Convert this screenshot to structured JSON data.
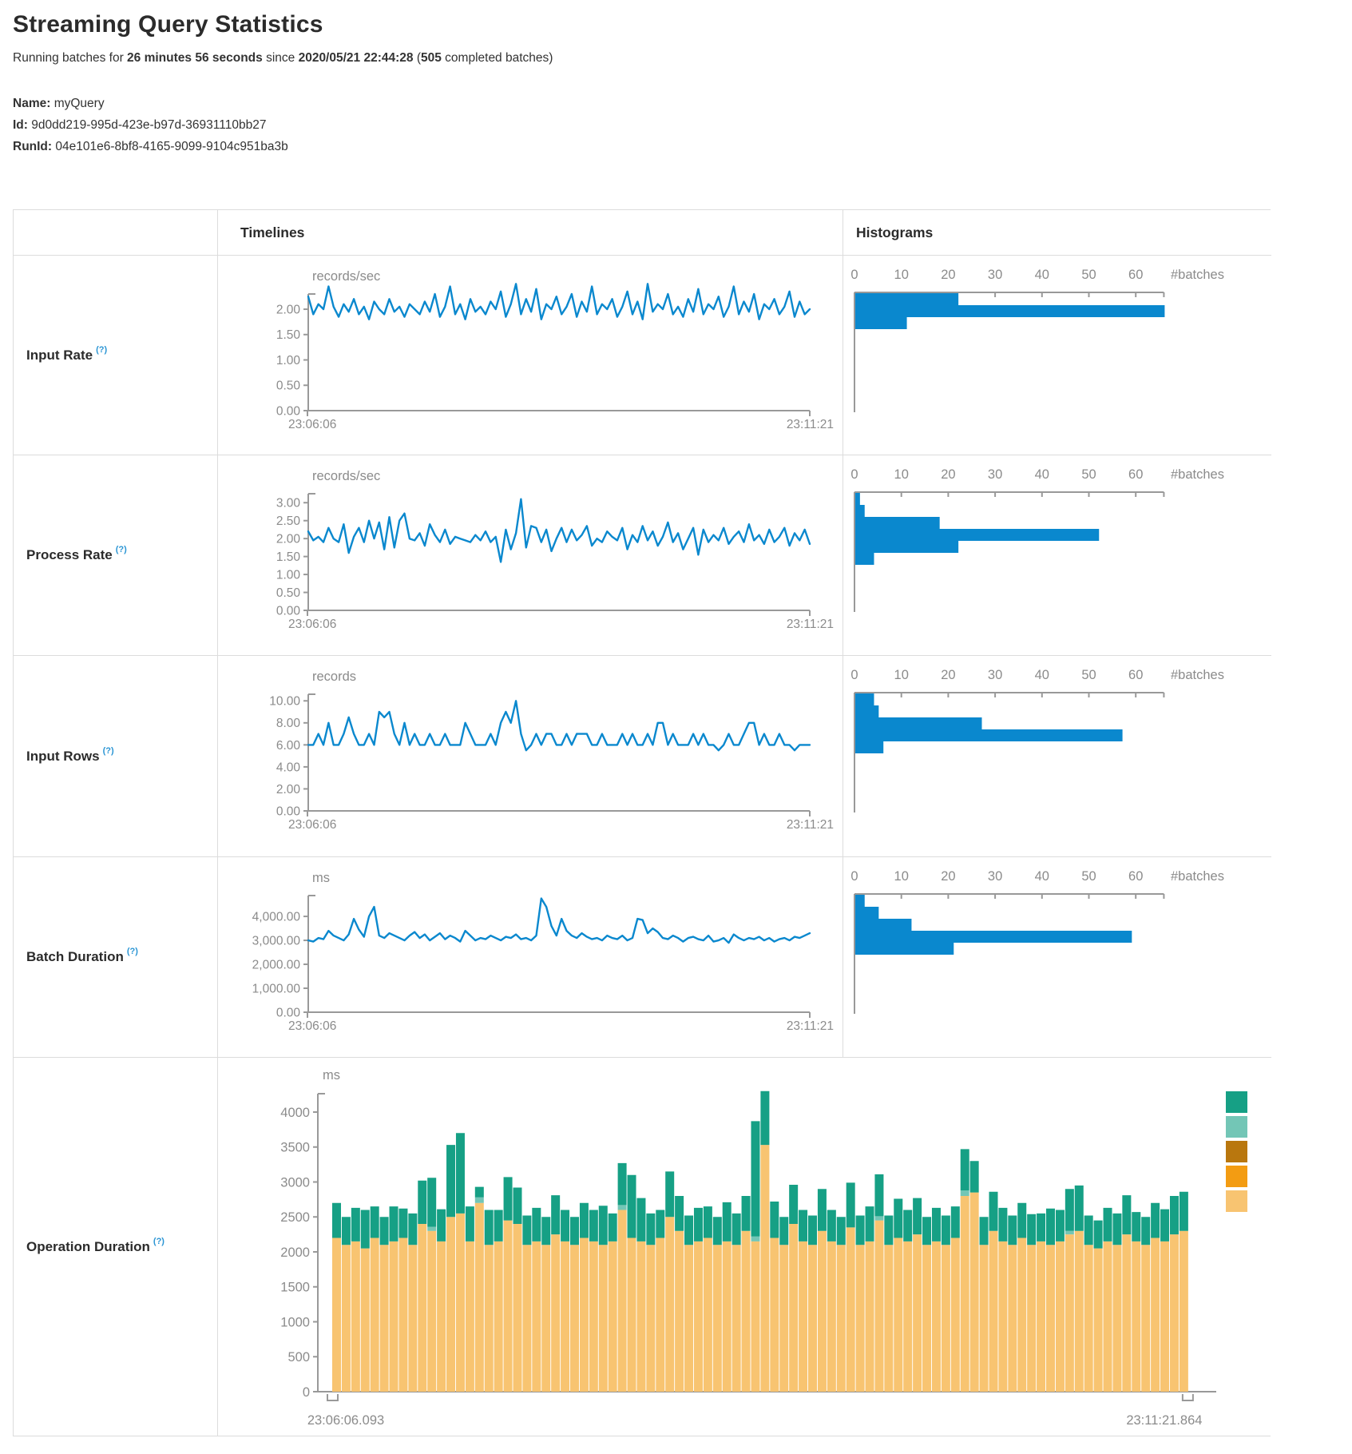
{
  "page": {
    "title": "Streaming Query Statistics"
  },
  "subtitle": {
    "prefix": "Running batches for ",
    "duration": "26 minutes 56 seconds",
    "middle": " since ",
    "start_time": "2020/05/21 22:44:28",
    "paren": " (",
    "completed_count": "505",
    "suffix": " completed batches)"
  },
  "meta": {
    "name_label": "Name:",
    "name": " myQuery",
    "id_label": "Id:",
    "id": " 9d0dd219-995d-423e-b97d-36931110bb27",
    "runid_label": "RunId:",
    "runid": " 04e101e6-8bf8-4165-9099-9104c951ba3b"
  },
  "table": {
    "timelines_header": "Timelines",
    "histograms_header": "Histograms",
    "help_mark": "(?)"
  },
  "colors": {
    "series_blue": "#0a88ce",
    "axis_gray": "#999999",
    "tick_text": "#8b8b8b",
    "help_blue": "#2a95d4"
  },
  "chart_data": [
    {
      "name": "Input Rate",
      "type": "line",
      "timeline": {
        "unit": "records/sec",
        "x_start_label": "23:06:06",
        "x_end_label": "23:11:21",
        "ylim": [
          0,
          2.3
        ],
        "yticks": [
          0,
          0.5,
          1,
          1.5,
          2
        ],
        "ytick_labels": [
          "0.00",
          "0.50",
          "1.00",
          "1.50",
          "2.00"
        ],
        "values": [
          2.25,
          1.9,
          2.1,
          2.0,
          2.45,
          2.05,
          1.85,
          2.1,
          1.95,
          2.2,
          1.9,
          2.05,
          1.8,
          2.15,
          2.0,
          1.9,
          2.2,
          1.95,
          2.05,
          1.85,
          2.1,
          2.0,
          1.9,
          2.15,
          1.95,
          2.3,
          1.85,
          2.05,
          2.45,
          1.9,
          2.1,
          1.8,
          2.2,
          1.95,
          2.05,
          1.9,
          2.15,
          2.0,
          2.35,
          1.85,
          2.1,
          2.5,
          1.9,
          2.2,
          1.95,
          2.4,
          1.8,
          2.1,
          2.0,
          2.25,
          1.9,
          2.05,
          2.3,
          1.85,
          2.15,
          1.95,
          2.45,
          1.9,
          2.1,
          2.0,
          2.2,
          1.85,
          2.05,
          2.35,
          1.9,
          2.15,
          1.8,
          2.5,
          1.95,
          2.1,
          2.0,
          2.3,
          1.9,
          2.05,
          1.85,
          2.2,
          1.95,
          2.4,
          1.9,
          2.1,
          2.0,
          2.25,
          1.85,
          2.05,
          2.45,
          1.9,
          2.15,
          1.95,
          2.3,
          1.8,
          2.1,
          2.0,
          2.2,
          1.9,
          2.05,
          2.35,
          1.85,
          2.15,
          1.9,
          2.0
        ]
      },
      "histogram": {
        "xlabel": "#batches",
        "xticks": [
          0,
          10,
          20,
          30,
          40,
          50,
          60
        ],
        "xmax": 66,
        "bars": [
          22,
          66,
          11
        ]
      }
    },
    {
      "name": "Process Rate",
      "type": "line",
      "timeline": {
        "unit": "records/sec",
        "x_start_label": "23:06:06",
        "x_end_label": "23:11:21",
        "ylim": [
          0,
          3.25
        ],
        "yticks": [
          0,
          0.5,
          1,
          1.5,
          2,
          2.5,
          3
        ],
        "ytick_labels": [
          "0.00",
          "0.50",
          "1.00",
          "1.50",
          "2.00",
          "2.50",
          "3.00"
        ],
        "values": [
          2.2,
          1.95,
          2.05,
          1.9,
          2.3,
          2.0,
          1.9,
          2.4,
          1.6,
          2.05,
          2.3,
          1.9,
          2.5,
          2.0,
          2.45,
          1.7,
          2.6,
          1.75,
          2.5,
          2.7,
          2.0,
          1.95,
          2.15,
          1.8,
          2.4,
          2.1,
          1.9,
          2.25,
          1.85,
          2.05,
          2.0,
          1.95,
          1.9,
          2.1,
          1.95,
          2.2,
          1.9,
          2.05,
          1.35,
          2.25,
          1.7,
          2.15,
          3.1,
          1.75,
          2.35,
          2.3,
          1.9,
          2.25,
          1.65,
          2.0,
          2.3,
          1.9,
          2.25,
          1.95,
          2.1,
          2.35,
          1.8,
          2.0,
          1.9,
          2.2,
          2.05,
          1.95,
          2.3,
          1.7,
          2.1,
          1.9,
          2.35,
          1.95,
          2.2,
          1.8,
          2.05,
          2.45,
          1.9,
          2.15,
          1.7,
          2.0,
          2.3,
          1.55,
          2.25,
          1.9,
          2.1,
          1.95,
          2.3,
          1.85,
          2.05,
          2.2,
          1.9,
          2.4,
          1.95,
          2.1,
          1.85,
          2.25,
          1.9,
          2.05,
          2.3,
          1.8,
          2.15,
          1.95,
          2.25,
          1.85
        ]
      },
      "histogram": {
        "xlabel": "#batches",
        "xticks": [
          0,
          10,
          20,
          30,
          40,
          50,
          60
        ],
        "xmax": 66,
        "bars": [
          1,
          2,
          18,
          52,
          22,
          4
        ]
      }
    },
    {
      "name": "Input Rows",
      "type": "line",
      "timeline": {
        "unit": "records",
        "x_start_label": "23:06:06",
        "x_end_label": "23:11:21",
        "ylim": [
          0,
          10.6
        ],
        "yticks": [
          0,
          2,
          4,
          6,
          8,
          10
        ],
        "ytick_labels": [
          "0.00",
          "2.00",
          "4.00",
          "6.00",
          "8.00",
          "10.00"
        ],
        "values": [
          6,
          6,
          7,
          6,
          8,
          6,
          6,
          7,
          8.5,
          7,
          6,
          6,
          7,
          6,
          9,
          8.5,
          9,
          7,
          6,
          8,
          6,
          7,
          6,
          6,
          7,
          6,
          6,
          7,
          6,
          6,
          6,
          8,
          7,
          6,
          6,
          6,
          7,
          6,
          8,
          9,
          8,
          10,
          7,
          5.5,
          6,
          7,
          6,
          7,
          7,
          6,
          6,
          7,
          6,
          7,
          7,
          7,
          6,
          6,
          7,
          6,
          6,
          6,
          7,
          6,
          7,
          6,
          6,
          7,
          6,
          8,
          8,
          6,
          7,
          6,
          6,
          6,
          7,
          6,
          7,
          6,
          6,
          5.5,
          6,
          7,
          6,
          6,
          7,
          8,
          8,
          6,
          7,
          6,
          6,
          7,
          6,
          6,
          5.5,
          6,
          6,
          6
        ]
      },
      "histogram": {
        "xlabel": "#batches",
        "xticks": [
          0,
          10,
          20,
          30,
          40,
          50,
          60
        ],
        "xmax": 66,
        "bars": [
          4,
          5,
          27,
          57,
          6
        ]
      }
    },
    {
      "name": "Batch Duration",
      "type": "line",
      "timeline": {
        "unit": "ms",
        "x_start_label": "23:06:06",
        "x_end_label": "23:11:21",
        "ylim": [
          0,
          4870
        ],
        "yticks": [
          0,
          1000,
          2000,
          3000,
          4000
        ],
        "ytick_labels": [
          "0.00",
          "1,000.00",
          "2,000.00",
          "3,000.00",
          "4,000.00"
        ],
        "values": [
          3000,
          2950,
          3100,
          3050,
          3400,
          3200,
          3100,
          3000,
          3250,
          3900,
          3450,
          3150,
          4000,
          4400,
          3200,
          3100,
          3300,
          3200,
          3100,
          3000,
          3200,
          3350,
          3100,
          3250,
          3000,
          3150,
          3300,
          3050,
          3200,
          3100,
          2950,
          3400,
          3200,
          3000,
          3100,
          3050,
          3200,
          3100,
          3000,
          3150,
          3100,
          3250,
          3050,
          3100,
          3000,
          3200,
          4750,
          4400,
          3600,
          3200,
          3900,
          3400,
          3200,
          3100,
          3300,
          3150,
          3050,
          3100,
          3000,
          3200,
          3100,
          3050,
          3200,
          3000,
          3100,
          3900,
          3850,
          3300,
          3500,
          3350,
          3100,
          3050,
          3200,
          3100,
          2950,
          3100,
          3150,
          3050,
          3000,
          3200,
          2950,
          3000,
          3100,
          2900,
          3250,
          3100,
          3000,
          3100,
          3050,
          3150,
          3000,
          3100,
          2950,
          3050,
          3100,
          3000,
          3150,
          3100,
          3200,
          3300
        ]
      },
      "histogram": {
        "xlabel": "#batches",
        "xticks": [
          0,
          10,
          20,
          30,
          40,
          50,
          60
        ],
        "xmax": 66,
        "bars": [
          2,
          5,
          12,
          59,
          21
        ]
      }
    },
    {
      "name": "Operation Duration",
      "type": "stacked-bar",
      "timeline": {
        "unit": "ms",
        "x_start_label": "23:06:06.093",
        "x_end_label": "23:11:21.864",
        "ylim": [
          0,
          4300
        ],
        "yticks": [
          0,
          500,
          1000,
          1500,
          2000,
          2500,
          3000,
          3500,
          4000
        ],
        "ytick_labels": [
          "0",
          "500",
          "1000",
          "1500",
          "2000",
          "2500",
          "3000",
          "3500",
          "4000"
        ],
        "series": [
          {
            "color": "#F8C471",
            "values": [
              2200,
              2100,
              2150,
              2050,
              2200,
              2100,
              2150,
              2200,
              2100,
              2400,
              2300,
              2150,
              2500,
              2550,
              2150,
              2700,
              2100,
              2150,
              2450,
              2400,
              2100,
              2150,
              2100,
              2250,
              2150,
              2100,
              2200,
              2150,
              2100,
              2150,
              2600,
              2200,
              2150,
              2100,
              2200,
              2500,
              2300,
              2100,
              2150,
              2200,
              2100,
              2150,
              2100,
              2300,
              2150,
              3530,
              2200,
              2100,
              2400,
              2150,
              2100,
              2300,
              2150,
              2100,
              2350,
              2100,
              2150,
              2450,
              2100,
              2200,
              2150,
              2250,
              2100,
              2150,
              2100,
              2200,
              2800,
              2850,
              2100,
              2300,
              2150,
              2100,
              2200,
              2100,
              2150,
              2100,
              2150,
              2250,
              2300,
              2100,
              2050,
              2150,
              2100,
              2250,
              2150,
              2100,
              2200,
              2150,
              2250,
              2300
            ]
          },
          {
            "color": "#73C6B6",
            "values": [
              0,
              0,
              0,
              0,
              0,
              0,
              0,
              0,
              0,
              0,
              60,
              0,
              0,
              0,
              0,
              80,
              0,
              0,
              0,
              0,
              0,
              0,
              0,
              0,
              0,
              0,
              0,
              0,
              0,
              0,
              70,
              0,
              0,
              0,
              0,
              0,
              0,
              0,
              0,
              0,
              0,
              0,
              0,
              0,
              70,
              0,
              0,
              0,
              0,
              0,
              0,
              0,
              0,
              0,
              0,
              0,
              0,
              60,
              0,
              0,
              0,
              0,
              0,
              0,
              0,
              0,
              80,
              0,
              0,
              0,
              0,
              0,
              0,
              0,
              0,
              0,
              0,
              50,
              0,
              0,
              0,
              0,
              0,
              0,
              0,
              0,
              0,
              0,
              0,
              0
            ]
          },
          {
            "color": "#16A085",
            "values": [
              500,
              400,
              480,
              550,
              450,
              400,
              500,
              420,
              450,
              620,
              700,
              460,
              1030,
              1150,
              500,
              150,
              500,
              450,
              620,
              520,
              420,
              480,
              400,
              560,
              450,
              400,
              500,
              450,
              560,
              400,
              600,
              900,
              620,
              450,
              400,
              650,
              500,
              420,
              480,
              450,
              400,
              560,
              450,
              500,
              1650,
              770,
              520,
              400,
              560,
              450,
              420,
              600,
              450,
              400,
              640,
              420,
              500,
              600,
              420,
              560,
              450,
              520,
              400,
              480,
              420,
              450,
              590,
              450,
              400,
              560,
              480,
              420,
              500,
              440,
              400,
              520,
              450,
              600,
              650,
              420,
              400,
              480,
              450,
              560,
              420,
              400,
              500,
              460,
              550,
              560
            ]
          }
        ]
      },
      "legend_colors": [
        "#16A085",
        "#73C6B6",
        "#B9770E",
        "#F39C12",
        "#F8C471"
      ]
    }
  ]
}
